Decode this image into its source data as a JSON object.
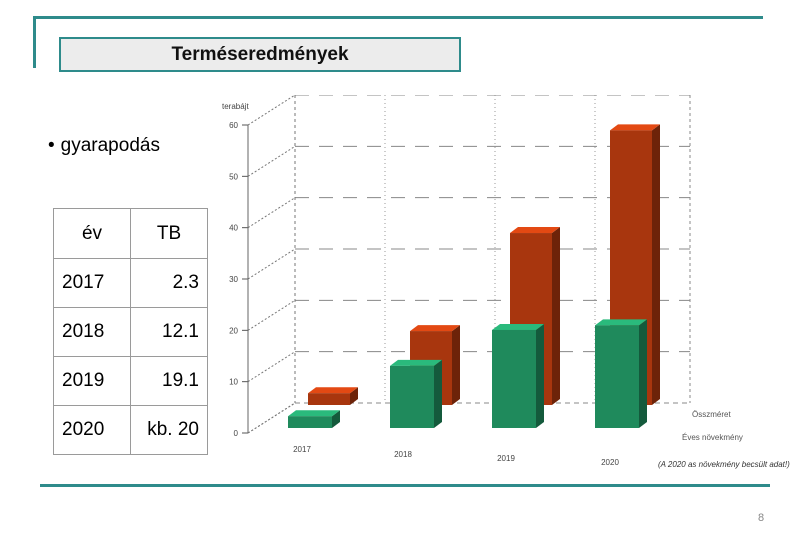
{
  "slide": {
    "title": "Terméseredmények",
    "bullet": "gyarapodás",
    "page_number": "8"
  },
  "table": {
    "headers": [
      "év",
      "TB"
    ],
    "rows": [
      [
        "2017",
        "2.3"
      ],
      [
        "2018",
        "12.1"
      ],
      [
        "2019",
        "19.1"
      ],
      [
        "2020",
        "kb. 20"
      ]
    ]
  },
  "chart_data": {
    "type": "bar",
    "ylabel": "terabájt",
    "ylim": [
      0,
      60
    ],
    "yticks": [
      "0",
      "10",
      "20",
      "30",
      "40",
      "50",
      "60"
    ],
    "categories": [
      "2017",
      "2018",
      "2019",
      "2020"
    ],
    "series": [
      {
        "name": "Összméret",
        "values": [
          2.3,
          14.4,
          33.5,
          53.5
        ],
        "color": "#a8360e"
      },
      {
        "name": "Éves növekmény",
        "values": [
          2.3,
          12.1,
          19.1,
          20
        ],
        "color": "#1f8a5c"
      }
    ],
    "footnote": "(A 2020 as növekmény becsült adat!)",
    "grid": true
  }
}
